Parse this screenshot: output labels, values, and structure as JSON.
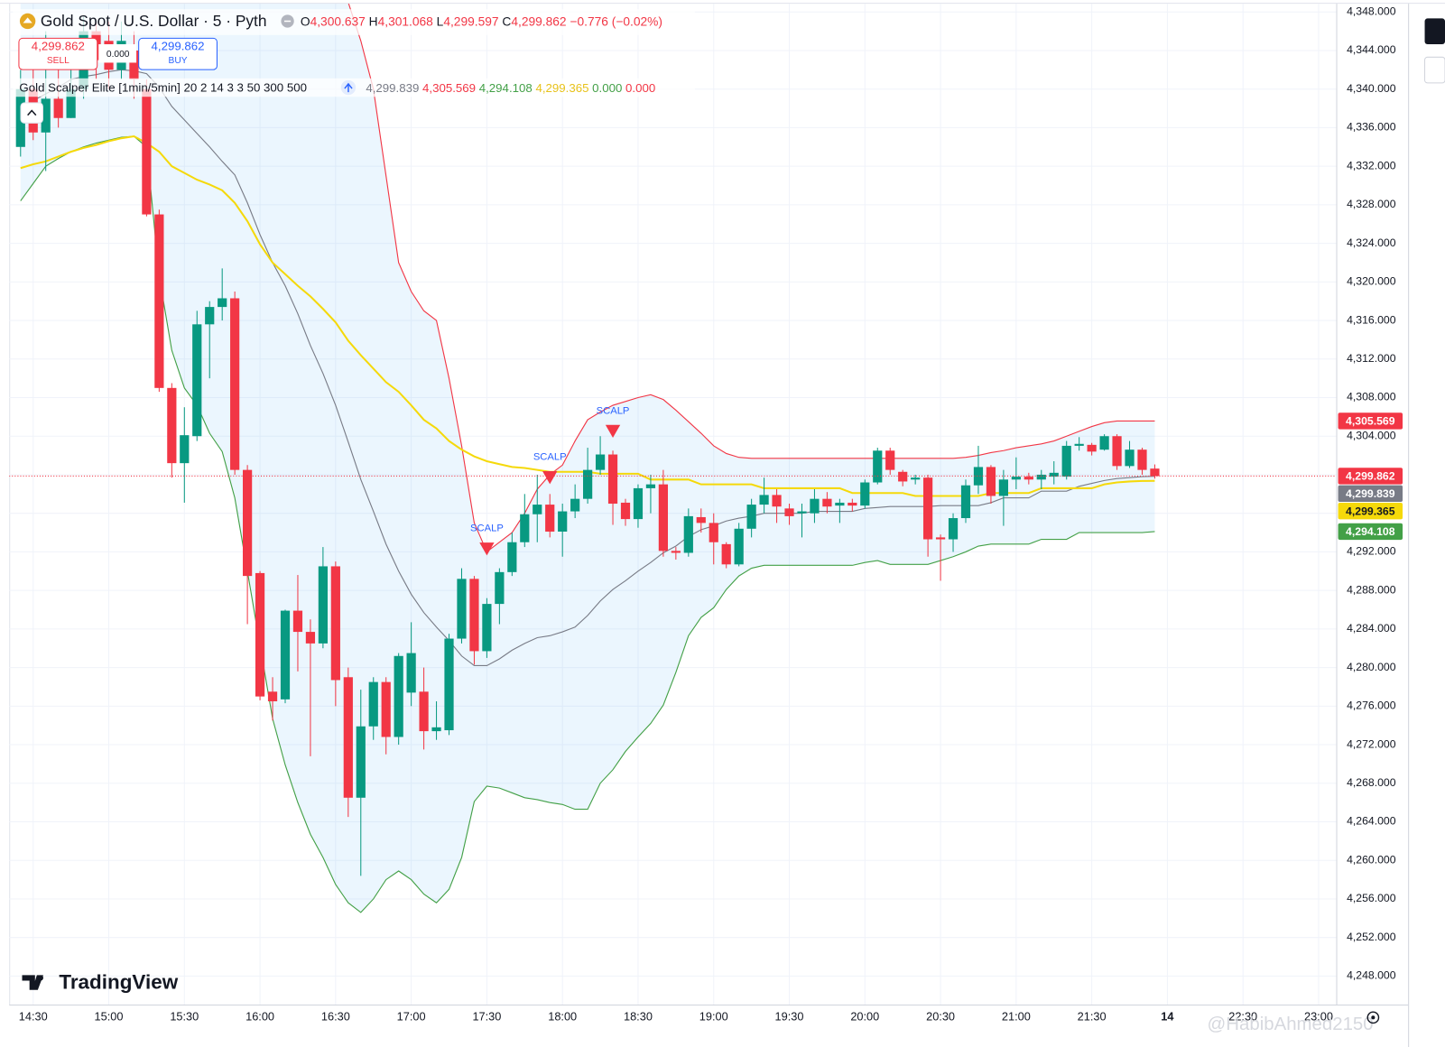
{
  "header": {
    "symbol": "Gold Spot / U.S. Dollar · 5 · Pyth",
    "ohlc": [
      {
        "key": "O",
        "value": "4,300.637"
      },
      {
        "key": "H",
        "value": "4,301.068"
      },
      {
        "key": "L",
        "value": "4,299.597"
      },
      {
        "key": "C",
        "value": "4,299.862"
      }
    ],
    "change": "−0.776 (−0.02%)",
    "ohlc_color": "#f23645",
    "sell": {
      "price": "4,299.862",
      "label": "SELL"
    },
    "spread": "0.000",
    "buy": {
      "price": "4,299.862",
      "label": "BUY"
    },
    "indicator": {
      "name": "Gold Scalper Elite [1min/5min] 20 2 14 3 3 50 300 500",
      "values": [
        {
          "text": "4,299.839",
          "color": "#787b86"
        },
        {
          "text": "4,305.569",
          "color": "#f23645"
        },
        {
          "text": "4,294.108",
          "color": "#43a047"
        },
        {
          "text": "4,299.365",
          "color": "#e8c21a"
        },
        {
          "text": "0.000",
          "color": "#43a047"
        },
        {
          "text": "0.000",
          "color": "#f23645"
        }
      ]
    }
  },
  "chart_data": {
    "type": "candlestick",
    "candles": {
      "up_color": "#089981",
      "down_color": "#f23645",
      "last_label": "4,299.862",
      "open": [
        4334,
        4340,
        4335.5,
        4339,
        4337,
        4340,
        4346,
        4345,
        4342,
        4344,
        4340,
        4327,
        4309,
        4301.2,
        4304,
        4315.6,
        4317.4,
        4318.3,
        4300.5,
        4289.8,
        4277.5,
        4276.7,
        4285.9,
        4283.7,
        4282.5,
        4290.5,
        4279,
        4266.5,
        4273.9,
        4278.5,
        4272.8,
        4277.4,
        4277.5,
        4273.4,
        4273.5,
        4283,
        4289.2,
        4281.7,
        4286.6,
        4289.9,
        4293,
        4295.9,
        4296.9,
        4294.1,
        4296.2,
        4297.5,
        4300.5,
        4302.1,
        4297.1,
        4295.4,
        4298.6,
        4299,
        4292.1,
        4291.9,
        4295.6,
        4295,
        4292.8,
        4290.7,
        4294.4,
        4296.9,
        4297.9,
        4296.5,
        4296,
        4296,
        4297.5,
        4296.8,
        4297.1,
        4296.8,
        4299.2,
        4302.5,
        4300.3,
        4299.5,
        4299.7,
        4293.5,
        4293.3,
        4295.5,
        4298.9,
        4300.8,
        4297.8,
        4299.5,
        4299.8,
        4299.5,
        4299.8,
        4299.8,
        4303,
        4303.1,
        4302.6,
        4304,
        4300.9,
        4302.6,
        4300.637
      ],
      "high": [
        4342,
        4344,
        4346,
        4344,
        4345,
        4347.5,
        4347,
        4347,
        4347,
        4346,
        4341,
        4327.5,
        4309.5,
        4307,
        4317,
        4318,
        4321.4,
        4319,
        4301,
        4290,
        4279,
        4286,
        4289.6,
        4285,
        4292.5,
        4291,
        4280,
        4277.7,
        4279,
        4279,
        4281.5,
        4284.7,
        4280,
        4276.5,
        4283.5,
        4290.3,
        4289.5,
        4287.2,
        4290.3,
        4294,
        4298,
        4300,
        4298,
        4297,
        4299,
        4302.8,
        4304,
        4302.5,
        4297.5,
        4299,
        4300,
        4300.5,
        4292.5,
        4296.5,
        4296.5,
        4296,
        4293,
        4295,
        4297.5,
        4299.7,
        4298.5,
        4297,
        4297,
        4298.5,
        4298.2,
        4297.5,
        4297.5,
        4299.5,
        4302.8,
        4302.8,
        4300.5,
        4300,
        4300,
        4293.8,
        4296,
        4299.5,
        4303,
        4301,
        4300.5,
        4301.8,
        4300.2,
        4300.5,
        4301.4,
        4303.5,
        4303.9,
        4303.3,
        4304.2,
        4304.2,
        4303.5,
        4302.8,
        4301.068
      ],
      "low": [
        4333,
        4334.7,
        4331.5,
        4336,
        4337,
        4339,
        4341,
        4340,
        4341,
        4339,
        4326.8,
        4308.6,
        4299.7,
        4297.1,
        4303.5,
        4310,
        4316,
        4300,
        4284.5,
        4276.6,
        4274.5,
        4276.3,
        4279.6,
        4270.8,
        4282,
        4276,
        4264.5,
        4258.4,
        4272.5,
        4271,
        4272,
        4276,
        4271.5,
        4272.5,
        4273,
        4282.5,
        4280.3,
        4281,
        4284.5,
        4289.5,
        4292.5,
        4293,
        4293.5,
        4291.5,
        4295.5,
        4297,
        4300,
        4294.8,
        4294.7,
        4294.5,
        4296,
        4291.5,
        4291.2,
        4291.5,
        4294,
        4290.7,
        4290.3,
        4290.5,
        4293.5,
        4296,
        4295,
        4294.8,
        4293.5,
        4295,
        4296,
        4295,
        4296.2,
        4296.5,
        4299,
        4300,
        4298.8,
        4299,
        4291.5,
        4289,
        4292,
        4295,
        4298,
        4297,
        4294.7,
        4298.5,
        4299,
        4298.5,
        4299,
        4299.5,
        4302.5,
        4302,
        4302.5,
        4300.5,
        4300.7,
        4300,
        4299.597
      ],
      "close": [
        4340,
        4335.5,
        4339,
        4337,
        4340,
        4346,
        4343,
        4342,
        4345,
        4341,
        4327,
        4309,
        4301.2,
        4304.1,
        4315.6,
        4317.4,
        4318.3,
        4300.5,
        4289.5,
        4277,
        4276.5,
        4285.9,
        4283.7,
        4282.5,
        4290.5,
        4278.7,
        4266.5,
        4273.9,
        4278.5,
        4272.8,
        4281.2,
        4281.5,
        4273.4,
        4273.8,
        4283,
        4289.2,
        4281.7,
        4286.6,
        4289.9,
        4293,
        4295.9,
        4296.9,
        4294.1,
        4296.2,
        4297.5,
        4300.5,
        4302.1,
        4297,
        4295.4,
        4298.6,
        4299,
        4292.1,
        4291.9,
        4295.7,
        4295,
        4293,
        4290.7,
        4294.4,
        4296.9,
        4297.9,
        4296.7,
        4295.7,
        4296.2,
        4297.5,
        4296.7,
        4297.1,
        4296.8,
        4299.2,
        4302.5,
        4300.5,
        4299.3,
        4299.7,
        4293.3,
        4293.3,
        4295.5,
        4298.9,
        4300.8,
        4297.8,
        4299.5,
        4299.8,
        4299.5,
        4300,
        4300.2,
        4303,
        4303.2,
        4302.4,
        4304,
        4300.9,
        4302.6,
        4300.5,
        4299.862
      ]
    },
    "lines": [
      {
        "color": "#f23645",
        "last_label": "4,305.569",
        "values": [
          null,
          null,
          null,
          null,
          null,
          null,
          null,
          null,
          null,
          null,
          null,
          null,
          null,
          null,
          null,
          null,
          null,
          null,
          null,
          null,
          null,
          null,
          null,
          null,
          null,
          null,
          4349,
          4345,
          4340,
          4331,
          4322,
          4319,
          4317,
          4316,
          4310,
          4303,
          4295,
          4292,
          4293,
          4294,
          4296,
          4298.5,
          4300,
          4301,
          4303.5,
          4305.7,
          4306.5,
          4307.2,
          4307.6,
          4308,
          4308.3,
          4307.8,
          4306.7,
          4305.5,
          4304.3,
          4303,
          4302.2,
          4301.8,
          4301.7,
          4301.7,
          4301.7,
          4301.7,
          4301.7,
          4301.7,
          4301.7,
          4301.7,
          4301.7,
          4301.7,
          4301.7,
          4301.7,
          4301.7,
          4301.7,
          4301.7,
          4301.7,
          4301.7,
          4301.8,
          4302,
          4302.3,
          4302.5,
          4302.8,
          4303,
          4303.2,
          4303.5,
          4304,
          4304.5,
          4305,
          4305.4,
          4305.569,
          4305.569,
          4305.569,
          4305.569
        ]
      },
      {
        "color": "#43a047",
        "last_label": "4,294.108",
        "values": [
          4328.4,
          4330.2,
          4332,
          4332.8,
          4333.5,
          4334,
          4334.4,
          4334.7,
          4335,
          4335.1,
          4334,
          4320.6,
          4312.9,
          4309,
          4307.2,
          4304.3,
          4302.4,
          4297.6,
          4290,
          4282.3,
          4274.7,
          4269.9,
          4266,
          4262.7,
          4260.3,
          4257.5,
          4255.6,
          4254.6,
          4256,
          4258,
          4258.9,
          4258,
          4256.5,
          4255.6,
          4257,
          4260.3,
          4266.1,
          4267.7,
          4267.5,
          4267,
          4266.5,
          4266.3,
          4266,
          4265.8,
          4265.3,
          4265.3,
          4268,
          4269.4,
          4271.3,
          4272.8,
          4274.2,
          4276.1,
          4279.5,
          4283.3,
          4285.2,
          4286.2,
          4288.1,
          4289.5,
          4290.3,
          4290.6,
          4290.6,
          4290.6,
          4290.6,
          4290.6,
          4290.6,
          4290.6,
          4290.6,
          4290.9,
          4291.1,
          4290.7,
          4290.7,
          4290.7,
          4290.7,
          4291.1,
          4291.5,
          4292,
          4292.6,
          4292.8,
          4292.8,
          4292.8,
          4292.8,
          4293.3,
          4293.3,
          4293.3,
          4294,
          4294,
          4294,
          4294,
          4294,
          4294,
          4294.108
        ]
      },
      {
        "color": "#787b86",
        "last_label": "4,299.839",
        "values": [
          4338,
          4338.8,
          4339.5,
          4340.2,
          4341,
          4341.3,
          4341.5,
          4341.8,
          4342,
          4341.9,
          4341.6,
          4340.2,
          4338.2,
          4336.8,
          4335.4,
          4334,
          4332.5,
          4331.1,
          4328.2,
          4324.9,
          4322,
          4319.6,
          4316.7,
          4313.4,
          4310.5,
          4307.2,
          4303.4,
          4299.5,
          4296.2,
          4292.8,
          4290,
          4287.6,
          4285.7,
          4284.2,
          4282.8,
          4281.2,
          4280.2,
          4280.2,
          4280.9,
          4281.8,
          4282.5,
          4283.1,
          4283.3,
          4283.7,
          4284.2,
          4285.4,
          4286.9,
          4288.1,
          4289,
          4290,
          4290.9,
          4291.9,
          4292.6,
          4293.6,
          4294.3,
          4294.7,
          4295.2,
          4295.5,
          4295.7,
          4296,
          4296,
          4296,
          4296,
          4296.2,
          4296.2,
          4296.2,
          4296.2,
          4296.5,
          4296.6,
          4296.7,
          4296.7,
          4296.7,
          4296.7,
          4296.8,
          4296.8,
          4296.8,
          4296.8,
          4297.1,
          4297.6,
          4297.6,
          4297.6,
          4298.3,
          4298.3,
          4298.3,
          4298.8,
          4299.1,
          4299.4,
          4299.6,
          4299.7,
          4299.8,
          4299.839
        ]
      },
      {
        "color": "#f5d90a",
        "last_label": "4,299.365",
        "values": [
          4331.8,
          4332.2,
          4332.5,
          4333,
          4333.5,
          4333.9,
          4334.2,
          4334.6,
          4334.9,
          4335.1,
          4334.4,
          4333.5,
          4332,
          4331.3,
          4330.6,
          4330.1,
          4329.5,
          4328.2,
          4326.3,
          4323.9,
          4322,
          4320.8,
          4319.6,
          4318.5,
          4317.2,
          4315.8,
          4313.9,
          4312.4,
          4311,
          4309.6,
          4308.6,
          4307.2,
          4305.7,
          4304.8,
          4303.5,
          4302.6,
          4301.9,
          4301.4,
          4301.1,
          4300.8,
          4300.7,
          4300.5,
          4300.3,
          4300.3,
          4300.3,
          4300.3,
          4300.1,
          4300.1,
          4300.1,
          4300.1,
          4299.5,
          4299.5,
          4299.5,
          4299.5,
          4299,
          4299,
          4299,
          4299,
          4299,
          4298.6,
          4298.6,
          4298.6,
          4298.6,
          4298.6,
          4298.6,
          4298.6,
          4298.1,
          4298.1,
          4298.1,
          4298.1,
          4298.1,
          4297.8,
          4297.8,
          4297.8,
          4297.8,
          4297.8,
          4297.8,
          4298.1,
          4298.1,
          4298.1,
          4298.1,
          4298.6,
          4298.6,
          4298.6,
          4298.6,
          4298.6,
          4299,
          4299.2,
          4299.3,
          4299.35,
          4299.365
        ]
      }
    ],
    "band": {
      "between": [
        0,
        1
      ],
      "color": "rgba(33,150,243,0.09)"
    },
    "annotations": [
      {
        "text": "SCALP",
        "x": 37,
        "value": 4292.3,
        "color": "#f23645",
        "text_color": "#2962ff"
      },
      {
        "text": "SCALP",
        "x": 42,
        "value": 4299.7,
        "color": "#f23645",
        "text_color": "#2962ff"
      },
      {
        "text": "SCALP",
        "x": 47,
        "value": 4304.5,
        "color": "#f23645",
        "text_color": "#2962ff"
      }
    ],
    "last_price_line": true,
    "grid": true,
    "xlim": [
      -0.9,
      104.4
    ],
    "xticks": [
      {
        "value": 1,
        "label": "14:30"
      },
      {
        "value": 7,
        "label": "15:00"
      },
      {
        "value": 13,
        "label": "15:30"
      },
      {
        "value": 19,
        "label": "16:00"
      },
      {
        "value": 25,
        "label": "16:30"
      },
      {
        "value": 31,
        "label": "17:00"
      },
      {
        "value": 37,
        "label": "17:30"
      },
      {
        "value": 43,
        "label": "18:00"
      },
      {
        "value": 49,
        "label": "18:30"
      },
      {
        "value": 55,
        "label": "19:00"
      },
      {
        "value": 61,
        "label": "19:30"
      },
      {
        "value": 67,
        "label": "20:00"
      },
      {
        "value": 73,
        "label": "20:30"
      },
      {
        "value": 79,
        "label": "21:00"
      },
      {
        "value": 85,
        "label": "21:30"
      },
      {
        "value": 91,
        "label": "14"
      },
      {
        "value": 97,
        "label": "22:30"
      },
      {
        "value": 103,
        "label": "23:00"
      }
    ],
    "ylim": [
      4245.04,
      4349.24
    ],
    "yticks": [
      {
        "value": 4248,
        "label": "4,248.000"
      },
      {
        "value": 4252,
        "label": "4,252.000"
      },
      {
        "value": 4256,
        "label": "4,256.000"
      },
      {
        "value": 4260,
        "label": "4,260.000"
      },
      {
        "value": 4264,
        "label": "4,264.000"
      },
      {
        "value": 4268,
        "label": "4,268.000"
      },
      {
        "value": 4272,
        "label": "4,272.000"
      },
      {
        "value": 4276,
        "label": "4,276.000"
      },
      {
        "value": 4280,
        "label": "4,280.000"
      },
      {
        "value": 4284,
        "label": "4,284.000"
      },
      {
        "value": 4288,
        "label": "4,288.000"
      },
      {
        "value": 4292,
        "label": "4,292.000"
      },
      {
        "value": 4296,
        "label": "4,296.000"
      },
      {
        "value": 4300,
        "label": "4,300.000"
      },
      {
        "value": 4304,
        "label": "4,304.000"
      },
      {
        "value": 4308,
        "label": "4,308.000"
      },
      {
        "value": 4312,
        "label": "4,312.000"
      },
      {
        "value": 4316,
        "label": "4,316.000"
      },
      {
        "value": 4320,
        "label": "4,320.000"
      },
      {
        "value": 4324,
        "label": "4,324.000"
      },
      {
        "value": 4328,
        "label": "4,328.000"
      },
      {
        "value": 4332,
        "label": "4,332.000"
      },
      {
        "value": 4336,
        "label": "4,336.000"
      },
      {
        "value": 4340,
        "label": "4,340.000"
      },
      {
        "value": 4344,
        "label": "4,344.000"
      },
      {
        "value": 4348,
        "label": "4,348.000"
      }
    ]
  },
  "branding": {
    "logo": "TradingView",
    "watermark": "@HabibAhmed2150"
  }
}
